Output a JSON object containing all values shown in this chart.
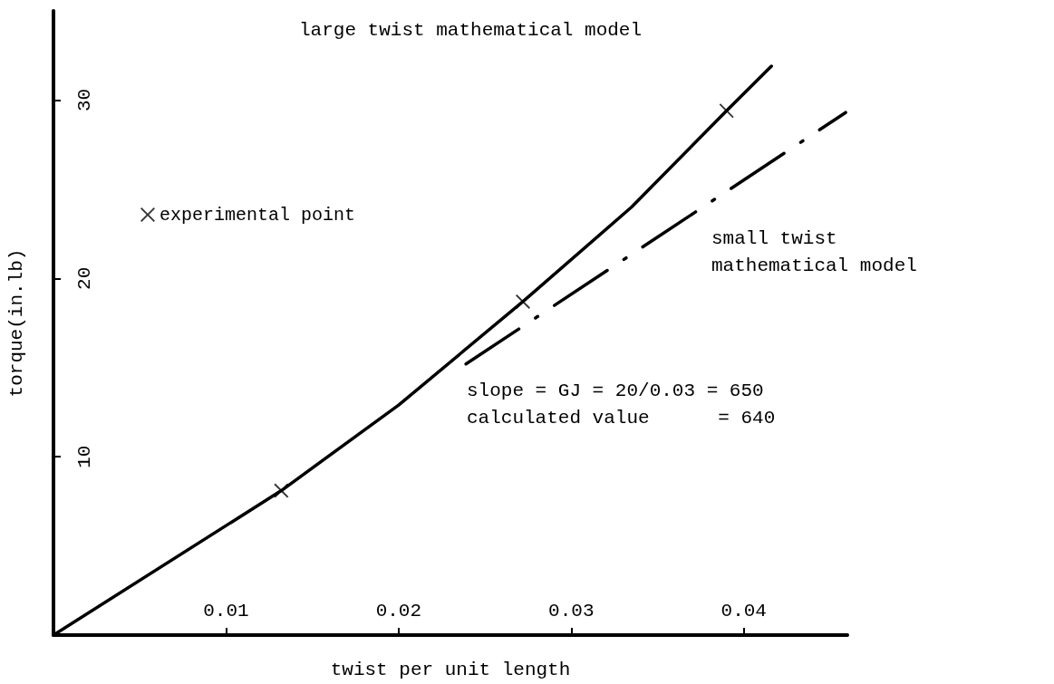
{
  "chart_data": {
    "type": "line",
    "xlabel": "twist per unit length",
    "ylabel": "torque(in.lb)",
    "xlim": [
      0,
      0.046
    ],
    "xticks": [
      0.01,
      0.02,
      0.03,
      0.04
    ],
    "ylim": [
      0,
      35
    ],
    "yticks": [
      10,
      20,
      30
    ],
    "grid": false,
    "legend": "top left",
    "series": [
      {
        "color": "#000000",
        "line_style": "solid",
        "marker": "none",
        "x": [
          0,
          0.0132,
          0.02,
          0.0272,
          0.0335,
          0.039,
          0.0416
        ],
        "values": [
          0,
          8.1,
          12.9,
          18.7,
          24,
          29.4,
          31.9
        ]
      },
      {
        "color": "#000000",
        "line_style": "dashed",
        "marker": "none",
        "x": [
          0.0239,
          0.0459
        ],
        "values": [
          15.2,
          29.3
        ]
      },
      {
        "type": "scatter",
        "name": "experimental point",
        "color": "#000000",
        "marker": "cross",
        "x": [
          0.0132,
          0.0272,
          0.039
        ],
        "values": [
          8.1,
          18.7,
          29.4
        ]
      }
    ],
    "annotations": [
      "large twist mathematical model",
      "small twist\nmathematical model",
      "slope = GJ = 20/0.03 = 650\ncalculated value      = 640"
    ]
  }
}
